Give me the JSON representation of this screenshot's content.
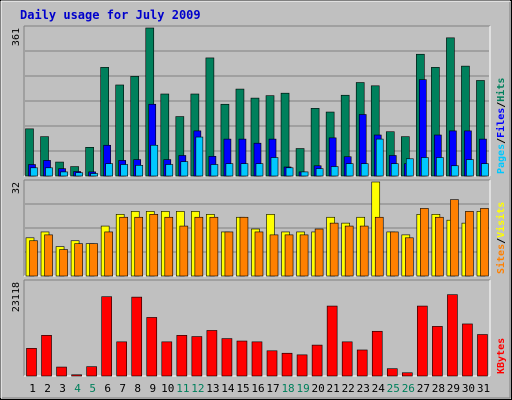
{
  "title": "Daily usage for July 2009",
  "colors": {
    "background": "#c0c0c0",
    "plot": "#c0c0c0",
    "title": "#0000cc",
    "hits": "#00805c",
    "files": "#0000ff",
    "pages": "#00c8ff",
    "visits": "#ffff00",
    "sites": "#ff8000",
    "kbytes": "#ff0000",
    "weekend_label": "#00805c",
    "weekday_label": "#000000"
  },
  "chart_data": [
    {
      "type": "bar",
      "name": "hits-files-pages",
      "ymax_label": "361",
      "ylim": [
        0,
        361
      ],
      "right_labels": [
        "Pages",
        "Files",
        "Hits"
      ],
      "categories": [
        "1",
        "2",
        "3",
        "4",
        "5",
        "6",
        "7",
        "8",
        "9",
        "10",
        "11",
        "12",
        "13",
        "14",
        "15",
        "16",
        "17",
        "18",
        "19",
        "20",
        "21",
        "22",
        "23",
        "24",
        "25",
        "26",
        "27",
        "28",
        "29",
        "30",
        "31"
      ],
      "series": [
        {
          "name": "Hits",
          "values": [
            115,
            96,
            34,
            23,
            70,
            265,
            222,
            243,
            361,
            200,
            145,
            200,
            288,
            175,
            212,
            190,
            196,
            202,
            67,
            165,
            156,
            197,
            228,
            220,
            108,
            96,
            297,
            265,
            337,
            268,
            233
          ]
        },
        {
          "name": "Files",
          "values": [
            28,
            38,
            18,
            11,
            10,
            75,
            38,
            40,
            175,
            40,
            50,
            110,
            48,
            90,
            90,
            80,
            90,
            22,
            10,
            25,
            93,
            47,
            150,
            100,
            50,
            30,
            235,
            100,
            110,
            110,
            90
          ]
        },
        {
          "name": "Pages",
          "values": [
            20,
            20,
            10,
            8,
            6,
            30,
            28,
            26,
            75,
            28,
            35,
            95,
            28,
            30,
            30,
            30,
            45,
            20,
            10,
            18,
            23,
            30,
            30,
            90,
            30,
            42,
            45,
            45,
            25,
            40,
            30
          ]
        }
      ]
    },
    {
      "type": "bar",
      "name": "visits-sites",
      "ymax_label": "32",
      "ylim": [
        0,
        32
      ],
      "right_labels": [
        "Sites",
        "Visits"
      ],
      "categories": [
        "1",
        "2",
        "3",
        "4",
        "5",
        "6",
        "7",
        "8",
        "9",
        "10",
        "11",
        "12",
        "13",
        "14",
        "15",
        "16",
        "17",
        "18",
        "19",
        "20",
        "21",
        "22",
        "23",
        "24",
        "25",
        "26",
        "27",
        "28",
        "29",
        "30",
        "31"
      ],
      "series": [
        {
          "name": "Visits",
          "values": [
            13,
            15,
            10,
            12,
            11,
            17,
            21,
            22,
            22,
            22,
            22,
            22,
            21,
            15,
            20,
            16,
            21,
            15,
            15,
            15,
            20,
            18,
            20,
            32,
            15,
            14,
            21,
            21,
            19,
            18,
            22
          ]
        },
        {
          "name": "Sites",
          "values": [
            12,
            14,
            9,
            11,
            11,
            15,
            20,
            20,
            21,
            20,
            17,
            20,
            20,
            15,
            20,
            15,
            14,
            14,
            14,
            16,
            18,
            17,
            17,
            20,
            15,
            13,
            23,
            20,
            26,
            22,
            23
          ]
        }
      ]
    },
    {
      "type": "bar",
      "name": "kbytes",
      "ymax_label": "23118",
      "ylim": [
        0,
        23118
      ],
      "right_labels": [
        "KBytes"
      ],
      "categories": [
        "1",
        "2",
        "3",
        "4",
        "5",
        "6",
        "7",
        "8",
        "9",
        "10",
        "11",
        "12",
        "13",
        "14",
        "15",
        "16",
        "17",
        "18",
        "19",
        "20",
        "21",
        "22",
        "23",
        "24",
        "25",
        "26",
        "27",
        "28",
        "29",
        "30",
        "31"
      ],
      "series": [
        {
          "name": "KBytes",
          "values": [
            6800,
            10000,
            2200,
            300,
            2300,
            19500,
            8400,
            19400,
            14400,
            8400,
            10000,
            9700,
            11200,
            9200,
            8600,
            8400,
            6200,
            5600,
            5200,
            7600,
            17200,
            8400,
            6400,
            11000,
            1800,
            800,
            17200,
            12200,
            20000,
            12800,
            10200
          ]
        }
      ]
    }
  ],
  "weekend_days": [
    "4",
    "5",
    "11",
    "12",
    "18",
    "19",
    "25",
    "26"
  ]
}
